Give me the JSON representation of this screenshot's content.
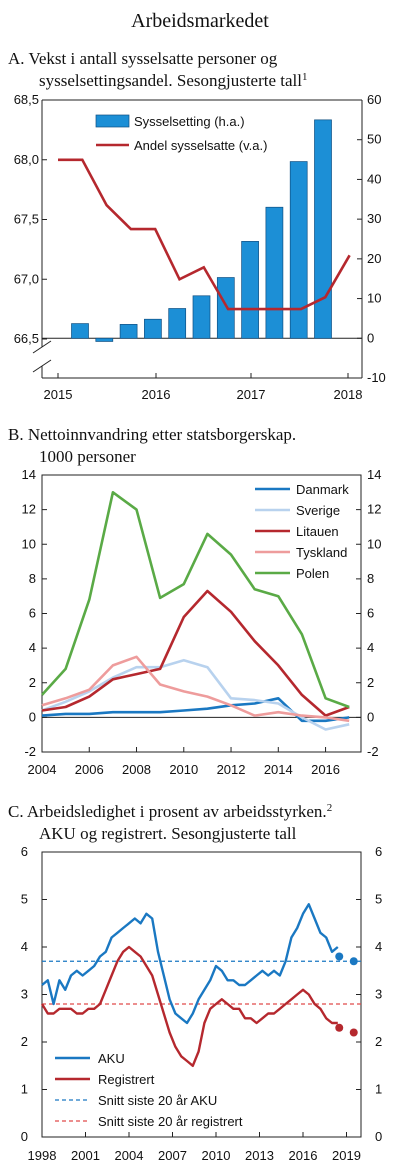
{
  "main_title": "Arbeidsmarkedet",
  "panels": {
    "a": {
      "title_line1": "A.  Vekst i antall sysselsatte personer og",
      "title_line2": "sysselsettingsandel. Sesongjusterte tall",
      "footnote_mark": "1"
    },
    "b": {
      "title_line1": "B.  Nettoinnvandring etter statsborgerskap.",
      "title_line2": "1000 personer"
    },
    "c": {
      "title_line1": "C.  Arbeidsledighet i prosent av arbeidsstyrken.",
      "title_line2": "AKU og registrert. Sesongjusterte tall",
      "footnote_mark": "2"
    }
  },
  "chart_data": [
    {
      "id": "a",
      "type": "bar+line",
      "x_ticks": [
        "2015",
        "2016",
        "2017",
        "2018"
      ],
      "y_left": {
        "ylim": [
          66.5,
          68.5
        ],
        "ticks": [
          "66,5",
          "67,0",
          "67,5",
          "68,0",
          "68,5"
        ]
      },
      "y_right": {
        "ylim": [
          -10,
          60
        ],
        "ticks": [
          "-10",
          "0",
          "10",
          "20",
          "30",
          "40",
          "50",
          "60"
        ]
      },
      "legend_position": "top-left",
      "bars": {
        "name": "Sysselsetting (h.a.)",
        "color": "#1c8fd6",
        "quarters": [
          "2015K1",
          "2015K2",
          "2015K3",
          "2015K4",
          "2016K1",
          "2016K2",
          "2016K3",
          "2016K4",
          "2017K1",
          "2017K2",
          "2017K3",
          "2017K4"
        ],
        "values": [
          3.7,
          -0.8,
          3.5,
          4.8,
          7.5,
          10.7,
          15.3,
          24.4,
          33.0,
          44.5,
          55.0,
          0
        ]
      },
      "line": {
        "name": "Andel sysselsatte (v.a.)",
        "color": "#b5282e",
        "quarters": [
          "2015K1",
          "2015K2",
          "2015K3",
          "2015K4",
          "2016K1",
          "2016K2",
          "2016K3",
          "2016K4",
          "2017K1",
          "2017K2",
          "2017K3",
          "2017K4",
          "2018K1"
        ],
        "values": [
          68.0,
          68.0,
          67.62,
          67.42,
          67.42,
          67.0,
          67.1,
          66.75,
          66.75,
          66.75,
          66.75,
          66.85,
          67.2
        ]
      }
    },
    {
      "id": "b",
      "type": "line",
      "x": [
        2004,
        2005,
        2006,
        2007,
        2008,
        2009,
        2010,
        2011,
        2012,
        2013,
        2014,
        2015,
        2016,
        2017
      ],
      "x_ticks": [
        "2004",
        "2006",
        "2008",
        "2010",
        "2012",
        "2014",
        "2016"
      ],
      "ylim": [
        -2,
        14
      ],
      "y_ticks": [
        "-2",
        "0",
        "2",
        "4",
        "6",
        "8",
        "10",
        "12",
        "14"
      ],
      "legend_position": "top-right",
      "series": [
        {
          "name": "Danmark",
          "color": "#1a78c2",
          "values": [
            0.1,
            0.2,
            0.2,
            0.3,
            0.3,
            0.3,
            0.4,
            0.5,
            0.7,
            0.8,
            1.1,
            -0.2,
            -0.2,
            0.0
          ]
        },
        {
          "name": "Sverige",
          "color": "#b8d2ee",
          "values": [
            0.4,
            0.9,
            1.5,
            2.3,
            2.9,
            2.9,
            3.3,
            2.9,
            1.1,
            1.0,
            0.8,
            0.0,
            -0.7,
            -0.4
          ]
        },
        {
          "name": "Litauen",
          "color": "#b5282e",
          "values": [
            0.4,
            0.6,
            1.2,
            2.2,
            2.5,
            2.8,
            5.8,
            7.3,
            6.1,
            4.4,
            3.0,
            1.3,
            0.1,
            0.6
          ]
        },
        {
          "name": "Tyskland",
          "color": "#ee9c9c",
          "values": [
            0.7,
            1.1,
            1.6,
            3.0,
            3.5,
            1.9,
            1.5,
            1.2,
            0.7,
            0.1,
            0.3,
            0.1,
            0.0,
            -0.2
          ]
        },
        {
          "name": "Polen",
          "color": "#5aaa46",
          "values": [
            1.3,
            2.8,
            6.8,
            13.0,
            12.0,
            6.9,
            7.7,
            10.6,
            9.4,
            7.4,
            7.0,
            4.8,
            1.1,
            0.6
          ]
        }
      ]
    },
    {
      "id": "c",
      "type": "line",
      "xlim": [
        1998,
        2020
      ],
      "x_ticks": [
        "1998",
        "2001",
        "2004",
        "2007",
        "2010",
        "2013",
        "2016",
        "2019"
      ],
      "ylim": [
        0,
        6
      ],
      "y_ticks": [
        "0",
        "1",
        "2",
        "3",
        "4",
        "5",
        "6"
      ],
      "legend_position": "bottom-left",
      "series": [
        {
          "name": "AKU",
          "color": "#1a78c2",
          "x": [
            1998.0,
            1998.4,
            1998.8,
            1999.2,
            1999.6,
            2000.0,
            2000.4,
            2000.8,
            2001.2,
            2001.6,
            2002.0,
            2002.4,
            2002.8,
            2003.2,
            2003.6,
            2004.0,
            2004.4,
            2004.8,
            2005.2,
            2005.6,
            2006.0,
            2006.4,
            2006.8,
            2007.2,
            2007.6,
            2008.0,
            2008.4,
            2008.8,
            2009.2,
            2009.6,
            2010.0,
            2010.4,
            2010.8,
            2011.2,
            2011.6,
            2012.0,
            2012.4,
            2012.8,
            2013.2,
            2013.6,
            2014.0,
            2014.4,
            2014.8,
            2015.2,
            2015.6,
            2016.0,
            2016.4,
            2016.8,
            2017.2,
            2017.6,
            2018.0,
            2018.4
          ],
          "values": [
            3.2,
            3.3,
            2.8,
            3.3,
            3.1,
            3.4,
            3.5,
            3.4,
            3.5,
            3.6,
            3.8,
            3.9,
            4.2,
            4.3,
            4.4,
            4.5,
            4.6,
            4.5,
            4.7,
            4.6,
            3.9,
            3.4,
            2.9,
            2.6,
            2.5,
            2.4,
            2.6,
            2.9,
            3.1,
            3.3,
            3.6,
            3.5,
            3.3,
            3.3,
            3.2,
            3.2,
            3.3,
            3.4,
            3.5,
            3.4,
            3.5,
            3.4,
            3.7,
            4.2,
            4.4,
            4.7,
            4.9,
            4.6,
            4.3,
            4.2,
            3.9,
            4.0
          ],
          "projection": {
            "x": [
              2018.5,
              2019.5
            ],
            "values": [
              3.8,
              3.7
            ]
          }
        },
        {
          "name": "Registrert",
          "color": "#b5282e",
          "x": [
            1998.0,
            1998.4,
            1998.8,
            1999.2,
            1999.6,
            2000.0,
            2000.4,
            2000.8,
            2001.2,
            2001.6,
            2002.0,
            2002.4,
            2002.8,
            2003.2,
            2003.6,
            2004.0,
            2004.4,
            2004.8,
            2005.2,
            2005.6,
            2006.0,
            2006.4,
            2006.8,
            2007.2,
            2007.6,
            2008.0,
            2008.4,
            2008.8,
            2009.2,
            2009.6,
            2010.0,
            2010.4,
            2010.8,
            2011.2,
            2011.6,
            2012.0,
            2012.4,
            2012.8,
            2013.2,
            2013.6,
            2014.0,
            2014.4,
            2014.8,
            2015.2,
            2015.6,
            2016.0,
            2016.4,
            2016.8,
            2017.2,
            2017.6,
            2018.0,
            2018.4
          ],
          "values": [
            2.8,
            2.6,
            2.6,
            2.7,
            2.7,
            2.7,
            2.6,
            2.6,
            2.7,
            2.7,
            2.8,
            3.1,
            3.4,
            3.7,
            3.9,
            4.0,
            3.9,
            3.8,
            3.6,
            3.4,
            3.0,
            2.6,
            2.2,
            1.9,
            1.7,
            1.6,
            1.5,
            1.8,
            2.4,
            2.7,
            2.8,
            2.9,
            2.8,
            2.7,
            2.7,
            2.5,
            2.5,
            2.4,
            2.5,
            2.6,
            2.6,
            2.7,
            2.8,
            2.9,
            3.0,
            3.1,
            3.0,
            2.8,
            2.7,
            2.5,
            2.4,
            2.4
          ],
          "projection": {
            "x": [
              2018.5,
              2019.5
            ],
            "values": [
              2.3,
              2.2
            ]
          }
        }
      ],
      "reference_lines": [
        {
          "name": "Snitt siste 20 år AKU",
          "color": "#1a78c2",
          "value": 3.7
        },
        {
          "name": "Snitt siste 20 år registrert",
          "color": "#e04a4a",
          "value": 2.8
        }
      ]
    }
  ]
}
